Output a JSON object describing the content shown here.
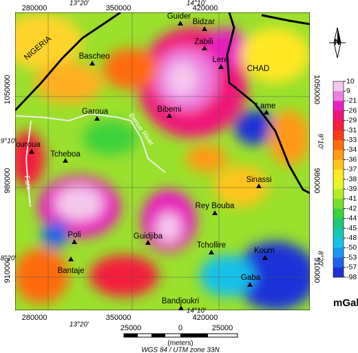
{
  "map": {
    "x_labels": [
      280000,
      350000,
      420000
    ],
    "y_labels": [
      1050000,
      980000,
      910000
    ],
    "lon_labels": [
      "13°20'",
      "14°10'"
    ],
    "lat_labels": [
      "9°10'",
      "8°20'"
    ],
    "places": [
      "Guider",
      "Bidzar",
      "Zabili",
      "Lere",
      "Bascheo",
      "Lame",
      "Garoua",
      "Bibemi",
      "Touroua",
      "Tcheboa",
      "Sinassi",
      "Rey Bouba",
      "Poli",
      "Guidjiba",
      "Tchollire",
      "Koum",
      "Bantaje",
      "Gaba",
      "Bandjoukri"
    ],
    "regions": [
      "NIGERIA",
      "CHAD"
    ],
    "rivers": [
      "Benue River",
      "Faro"
    ]
  },
  "legend": {
    "values": [
      10,
      9,
      -21,
      -26,
      -29,
      -31,
      -33,
      -34,
      -36,
      -37,
      -38,
      -39,
      -41,
      -42,
      -44,
      -45,
      -48,
      -50,
      -53,
      -57,
      -98
    ],
    "colors": [
      "#f4c8ee",
      "#ec80e0",
      "#e81fc0",
      "#f0147a",
      "#f51e3c",
      "#fa3a14",
      "#ff6a10",
      "#ff9a14",
      "#ffc41c",
      "#ffe824",
      "#e8f428",
      "#b4ec28",
      "#78e030",
      "#3cd23c",
      "#20c878",
      "#18c8b4",
      "#18c0e8",
      "#1c96f0",
      "#1e64ea",
      "#1e32d8"
    ],
    "unit": "mGal"
  },
  "north": "N",
  "scale": {
    "labels": [
      25000,
      0,
      25000
    ],
    "unit": "(meters)",
    "projection": "WGS 84 / UTM zone 33N"
  }
}
